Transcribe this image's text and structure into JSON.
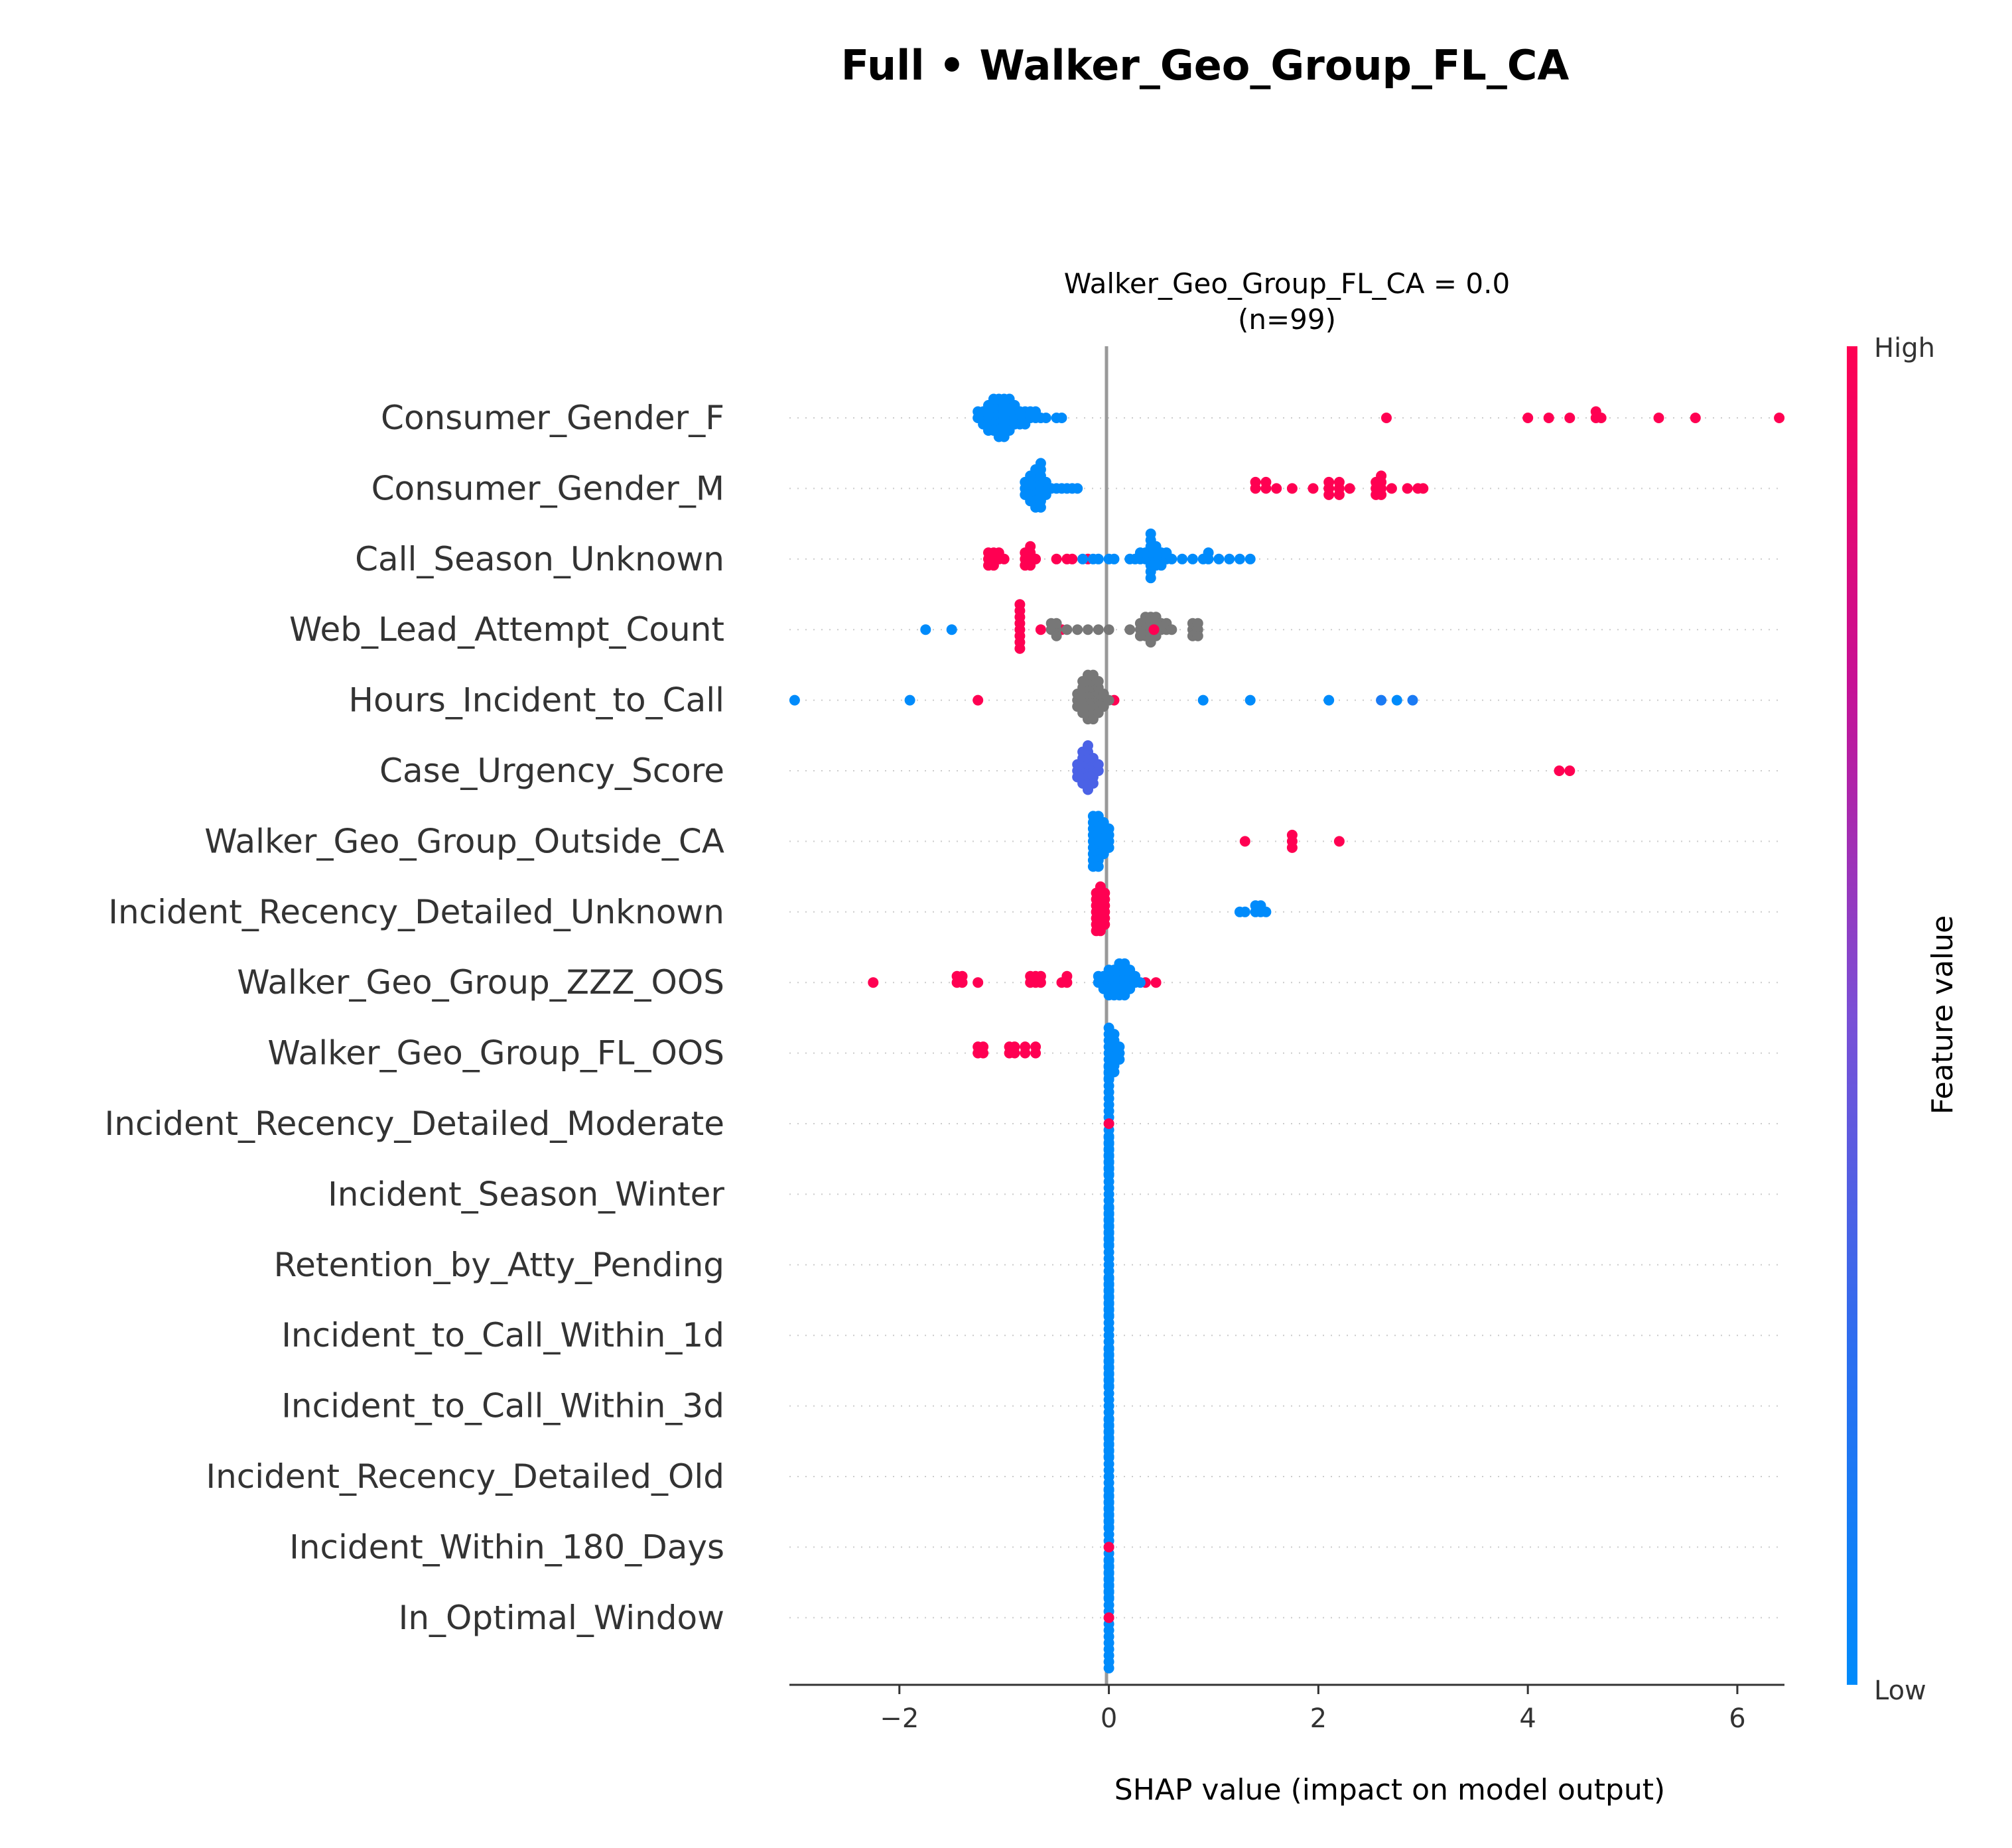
{
  "figure": {
    "suptitle": "Full • Walker_Geo_Group_FL_CA"
  },
  "chart_data": {
    "type": "scatter",
    "subtitle": "Walker_Geo_Group_FL_CA = 0.0",
    "subtitle2": "(n=99)",
    "xlabel": "SHAP value (impact on model output)",
    "xlim": [
      -3.05,
      6.45
    ],
    "xticks": [
      -2,
      0,
      2,
      4,
      6
    ],
    "xtick_labels": [
      "−2",
      "0",
      "2",
      "4",
      "6"
    ],
    "colorbar": {
      "label": "Feature value",
      "high": "High",
      "low": "Low",
      "colors": [
        "#008bfb",
        "#2c6ef0",
        "#7a4fd6",
        "#c71095",
        "#ff0052"
      ]
    },
    "colors": {
      "low": "#008bfb",
      "high": "#ff0052",
      "missing": "#777777",
      "axis_zero": "#999999",
      "grid": "#cccccc",
      "text": "#333333"
    },
    "features": [
      {
        "name": "Consumer_Gender_F",
        "groups": [
          {
            "x": [
              -1.25,
              -1.2,
              -1.15,
              -1.1,
              -1.05,
              -1.0,
              -0.95,
              -0.9,
              -0.85,
              -0.8,
              -0.75,
              -0.7,
              -0.65,
              -0.6,
              -0.5,
              -0.45
            ],
            "n": [
              2,
              3,
              5,
              6,
              7,
              7,
              6,
              4,
              3,
              3,
              2,
              2,
              1,
              1,
              1,
              1
            ],
            "c": 0
          },
          {
            "x": [
              2.65,
              4.0,
              4.2,
              4.4,
              4.65,
              4.7,
              5.25,
              5.6,
              6.4
            ],
            "n": [
              1,
              1,
              1,
              1,
              2,
              1,
              1,
              1,
              1
            ],
            "c": 1
          }
        ]
      },
      {
        "name": "Consumer_Gender_M",
        "groups": [
          {
            "x": [
              -0.8,
              -0.75,
              -0.7,
              -0.65,
              -0.6,
              -0.55,
              -0.5,
              -0.45,
              -0.4,
              -0.35,
              -0.3
            ],
            "n": [
              3,
              5,
              7,
              8,
              3,
              1,
              1,
              1,
              1,
              1,
              1
            ],
            "c": 0
          },
          {
            "x": [
              1.4,
              1.5,
              1.6,
              1.75,
              1.95,
              2.1,
              2.2,
              2.3,
              2.55,
              2.6,
              2.7,
              2.85,
              2.95,
              3.0
            ],
            "n": [
              2,
              2,
              1,
              1,
              1,
              3,
              3,
              1,
              3,
              4,
              1,
              1,
              1,
              1
            ],
            "c": 1
          }
        ]
      },
      {
        "name": "Call_Season_Unknown",
        "groups": [
          {
            "x": [
              -1.15,
              -1.1,
              -1.05,
              -1.0,
              -0.8,
              -0.75,
              -0.7,
              -0.5,
              -0.4,
              -0.35,
              -0.2
            ],
            "n": [
              3,
              3,
              2,
              1,
              3,
              4,
              1,
              1,
              1,
              1,
              1
            ],
            "c": 1
          },
          {
            "x": [
              0.0,
              0.05,
              0.2,
              0.25,
              0.3,
              0.35,
              0.4,
              0.45,
              0.5,
              0.55,
              0.6,
              0.7,
              0.8,
              0.9,
              0.95,
              1.05,
              1.15,
              1.25,
              1.35
            ],
            "n": [
              1,
              1,
              1,
              1,
              2,
              2,
              8,
              4,
              3,
              2,
              1,
              1,
              1,
              1,
              2,
              1,
              1,
              1,
              1
            ],
            "c": 0
          },
          {
            "x": [
              -0.25,
              -0.15,
              -0.1
            ],
            "n": [
              1,
              1,
              1
            ],
            "c": 0
          }
        ]
      },
      {
        "name": "Web_Lead_Attempt_Count",
        "groups": [
          {
            "x": [
              -1.75,
              -1.5
            ],
            "n": [
              1,
              1
            ],
            "c": 0
          },
          {
            "x": [
              -0.85,
              -0.65,
              -0.45
            ],
            "n": [
              8,
              1,
              1
            ],
            "c": 1
          },
          {
            "x": [
              -0.55,
              -0.5,
              -0.4,
              -0.3,
              -0.2,
              -0.1,
              0.0,
              0.2,
              0.3,
              0.35,
              0.4,
              0.45,
              0.5,
              0.55,
              0.6,
              0.8,
              0.85
            ],
            "n": [
              2,
              3,
              1,
              1,
              1,
              1,
              1,
              1,
              3,
              4,
              5,
              4,
              2,
              2,
              1,
              3,
              3
            ],
            "c": 2
          },
          {
            "x": [
              0.43
            ],
            "n": [
              1
            ],
            "c": 1
          }
        ]
      },
      {
        "name": "Hours_Incident_to_Call",
        "groups": [
          {
            "x": [
              -3.0,
              -1.9,
              0.9,
              1.35,
              2.1,
              2.75
            ],
            "n": [
              1,
              1,
              1,
              1,
              1,
              1
            ],
            "c": 0
          },
          {
            "x": [
              -1.25,
              0.05
            ],
            "n": [
              1,
              1
            ],
            "c": 1
          },
          {
            "x": [
              2.6,
              2.9
            ],
            "n": [
              1,
              1
            ],
            "c": 0.15
          },
          {
            "x": [
              -0.3,
              -0.25,
              -0.2,
              -0.15,
              -0.1,
              -0.05,
              0.0
            ],
            "n": [
              3,
              6,
              8,
              8,
              6,
              3,
              1
            ],
            "c": 2
          }
        ]
      },
      {
        "name": "Case_Urgency_Score",
        "groups": [
          {
            "x": [
              -0.3,
              -0.25,
              -0.2,
              -0.15,
              -0.1
            ],
            "n": [
              3,
              6,
              8,
              5,
              2
            ],
            "c": 0.35
          },
          {
            "x": [
              4.3,
              4.4
            ],
            "n": [
              1,
              1
            ],
            "c": 1
          }
        ]
      },
      {
        "name": "Walker_Geo_Group_Outside_CA",
        "groups": [
          {
            "x": [
              -0.15,
              -0.1,
              -0.05,
              0.0
            ],
            "n": [
              9,
              9,
              6,
              4
            ],
            "c": 0
          },
          {
            "x": [
              1.3,
              1.75,
              2.2
            ],
            "n": [
              1,
              3,
              1
            ],
            "c": 1
          }
        ]
      },
      {
        "name": "Incident_Recency_Detailed_Unknown",
        "groups": [
          {
            "x": [
              -0.12,
              -0.08,
              -0.04
            ],
            "n": [
              7,
              8,
              6
            ],
            "c": 1
          },
          {
            "x": [
              1.25,
              1.3,
              1.4,
              1.45,
              1.5
            ],
            "n": [
              1,
              1,
              2,
              2,
              1
            ],
            "c": 0
          }
        ]
      },
      {
        "name": "Walker_Geo_Group_ZZZ_OOS",
        "groups": [
          {
            "x": [
              -2.25,
              -1.45,
              -1.4,
              -1.25,
              -0.75,
              -0.7,
              -0.65,
              -0.45,
              -0.4,
              0.35,
              0.45
            ],
            "n": [
              1,
              2,
              2,
              1,
              2,
              2,
              2,
              1,
              2,
              1,
              1
            ],
            "c": 1
          },
          {
            "x": [
              -0.1,
              -0.05,
              0.0,
              0.05,
              0.1,
              0.15,
              0.2,
              0.25,
              0.3
            ],
            "n": [
              2,
              3,
              5,
              5,
              6,
              6,
              4,
              2,
              1
            ],
            "c": 0
          }
        ]
      },
      {
        "name": "Walker_Geo_Group_FL_OOS",
        "groups": [
          {
            "x": [
              -1.25,
              -1.2,
              -0.95,
              -0.9,
              -0.8,
              -0.7
            ],
            "n": [
              2,
              2,
              2,
              2,
              2,
              2
            ],
            "c": 1
          },
          {
            "x": [
              0.0,
              0.05,
              0.1
            ],
            "n": [
              9,
              7,
              3
            ],
            "c": 0
          }
        ]
      },
      {
        "name": "Incident_Recency_Detailed_Moderate",
        "groups": [
          {
            "x": [
              0.0
            ],
            "n": [
              18
            ],
            "c": 0
          },
          {
            "x": [
              0.0
            ],
            "n": [
              1
            ],
            "c": 1
          }
        ]
      },
      {
        "name": "Incident_Season_Winter",
        "groups": [
          {
            "x": [
              0.0
            ],
            "n": [
              18
            ],
            "c": 0
          }
        ]
      },
      {
        "name": "Retention_by_Atty_Pending",
        "groups": [
          {
            "x": [
              0.0
            ],
            "n": [
              18
            ],
            "c": 0
          }
        ]
      },
      {
        "name": "Incident_to_Call_Within_1d",
        "groups": [
          {
            "x": [
              0.0
            ],
            "n": [
              18
            ],
            "c": 0
          }
        ]
      },
      {
        "name": "Incident_to_Call_Within_3d",
        "groups": [
          {
            "x": [
              0.0
            ],
            "n": [
              18
            ],
            "c": 0
          }
        ]
      },
      {
        "name": "Incident_Recency_Detailed_Old",
        "groups": [
          {
            "x": [
              0.0
            ],
            "n": [
              18
            ],
            "c": 0
          }
        ]
      },
      {
        "name": "Incident_Within_180_Days",
        "groups": [
          {
            "x": [
              0.0
            ],
            "n": [
              18
            ],
            "c": 0
          },
          {
            "x": [
              0.0
            ],
            "n": [
              1
            ],
            "c": 1
          }
        ]
      },
      {
        "name": "In_Optimal_Window",
        "groups": [
          {
            "x": [
              0.0
            ],
            "n": [
              18
            ],
            "c": 0
          },
          {
            "x": [
              0.0
            ],
            "n": [
              1
            ],
            "c": 1
          }
        ]
      }
    ]
  }
}
